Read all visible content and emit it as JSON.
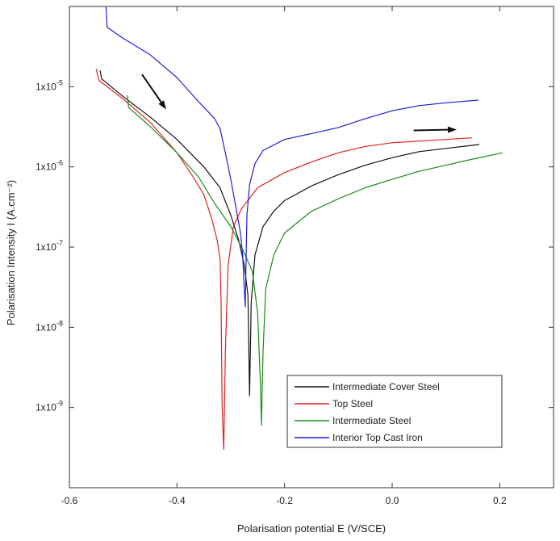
{
  "chart_data": {
    "type": "line",
    "xlabel": "Polarisation potential E (V/SCE)",
    "ylabel": "Polarisation Intensity I (A.cm⁻²)",
    "xlim": [
      -0.6,
      0.3
    ],
    "ylim": [
      1e-10,
      0.0001
    ],
    "yscale": "log",
    "grid": false,
    "legend_position": "bottom-right",
    "x_ticks": [
      {
        "value": -0.6,
        "label": "-0.6"
      },
      {
        "value": -0.4,
        "label": "-0.4"
      },
      {
        "value": -0.2,
        "label": "-0.2"
      },
      {
        "value": 0.0,
        "label": "0.0"
      },
      {
        "value": 0.2,
        "label": "0.2"
      }
    ],
    "y_ticks": [
      {
        "value": 1e-05,
        "base": "1x10",
        "exp": "-5"
      },
      {
        "value": 1e-06,
        "base": "1x10",
        "exp": "-6"
      },
      {
        "value": 1e-07,
        "base": "1x10",
        "exp": "-7"
      },
      {
        "value": 1e-08,
        "base": "1x10",
        "exp": "-8"
      },
      {
        "value": 1e-09,
        "base": "1x10",
        "exp": "-9"
      }
    ],
    "series": [
      {
        "name": "Intermediate Cover Steel",
        "color": "#111111",
        "points": [
          [
            -0.543,
            1.6e-05
          ],
          [
            -0.54,
            1.25e-05
          ],
          [
            -0.5,
            7.5e-06
          ],
          [
            -0.45,
            4.2e-06
          ],
          [
            -0.4,
            2.2e-06
          ],
          [
            -0.35,
            1e-06
          ],
          [
            -0.32,
            5.5e-07
          ],
          [
            -0.3,
            2.5e-07
          ],
          [
            -0.285,
            1.2e-07
          ],
          [
            -0.275,
            6e-08
          ],
          [
            -0.268,
            2.5e-08
          ],
          [
            -0.265,
            1.4e-09
          ],
          [
            -0.262,
            2e-08
          ],
          [
            -0.255,
            8e-08
          ],
          [
            -0.24,
            1.8e-07
          ],
          [
            -0.22,
            2.8e-07
          ],
          [
            -0.2,
            3.8e-07
          ],
          [
            -0.15,
            5.8e-07
          ],
          [
            -0.1,
            8e-07
          ],
          [
            -0.05,
            1.05e-06
          ],
          [
            0.0,
            1.3e-06
          ],
          [
            0.05,
            1.55e-06
          ],
          [
            0.1,
            1.7e-06
          ],
          [
            0.162,
            1.9e-06
          ]
        ]
      },
      {
        "name": "Top Steel",
        "color": "#e02020",
        "points": [
          [
            -0.55,
            1.65e-05
          ],
          [
            -0.545,
            1.2e-05
          ],
          [
            -0.5,
            7e-06
          ],
          [
            -0.45,
            3.6e-06
          ],
          [
            -0.4,
            1.5e-06
          ],
          [
            -0.37,
            7.5e-07
          ],
          [
            -0.35,
            4.5e-07
          ],
          [
            -0.335,
            2.2e-07
          ],
          [
            -0.325,
            1.2e-07
          ],
          [
            -0.32,
            7e-08
          ],
          [
            -0.318,
            2e-08
          ],
          [
            -0.316,
            1e-09
          ],
          [
            -0.313,
            3e-10
          ],
          [
            -0.31,
            5e-09
          ],
          [
            -0.305,
            6e-08
          ],
          [
            -0.295,
            1.8e-07
          ],
          [
            -0.28,
            3e-07
          ],
          [
            -0.25,
            5.5e-07
          ],
          [
            -0.2,
            8.5e-07
          ],
          [
            -0.15,
            1.15e-06
          ],
          [
            -0.1,
            1.5e-06
          ],
          [
            -0.05,
            1.8e-06
          ],
          [
            0.0,
            2e-06
          ],
          [
            0.05,
            2.1e-06
          ],
          [
            0.1,
            2.2e-06
          ],
          [
            0.148,
            2.3e-06
          ]
        ]
      },
      {
        "name": "Intermediate Steel",
        "color": "#1a8a1a",
        "points": [
          [
            -0.492,
            7.8e-06
          ],
          [
            -0.49,
            5.5e-06
          ],
          [
            -0.45,
            3.2e-06
          ],
          [
            -0.4,
            1.5e-06
          ],
          [
            -0.36,
            7.5e-07
          ],
          [
            -0.33,
            3.5e-07
          ],
          [
            -0.3,
            1.8e-07
          ],
          [
            -0.28,
            1e-07
          ],
          [
            -0.26,
            5e-08
          ],
          [
            -0.25,
            1.5e-08
          ],
          [
            -0.245,
            2e-09
          ],
          [
            -0.243,
            6e-10
          ],
          [
            -0.24,
            5e-09
          ],
          [
            -0.235,
            3e-08
          ],
          [
            -0.22,
            8e-08
          ],
          [
            -0.2,
            1.5e-07
          ],
          [
            -0.15,
            2.8e-07
          ],
          [
            -0.1,
            4e-07
          ],
          [
            -0.05,
            5.5e-07
          ],
          [
            0.0,
            7e-07
          ],
          [
            0.05,
            8.8e-07
          ],
          [
            0.1,
            1.05e-06
          ],
          [
            0.15,
            1.25e-06
          ],
          [
            0.205,
            1.5e-06
          ]
        ]
      },
      {
        "name": "Interior Top Cast Iron",
        "color": "#1f1fd6",
        "points": [
          [
            -0.532,
            0.0001
          ],
          [
            -0.53,
            5.5e-05
          ],
          [
            -0.5,
            4e-05
          ],
          [
            -0.45,
            2.5e-05
          ],
          [
            -0.4,
            1.3e-05
          ],
          [
            -0.36,
            6.5e-06
          ],
          [
            -0.33,
            4e-06
          ],
          [
            -0.32,
            3e-06
          ],
          [
            -0.31,
            1.5e-06
          ],
          [
            -0.3,
            7e-07
          ],
          [
            -0.29,
            3e-07
          ],
          [
            -0.282,
            1.5e-07
          ],
          [
            -0.278,
            8e-08
          ],
          [
            -0.275,
            3e-08
          ],
          [
            -0.273,
            1.8e-08
          ],
          [
            -0.272,
            5e-08
          ],
          [
            -0.27,
            2.5e-07
          ],
          [
            -0.265,
            6e-07
          ],
          [
            -0.255,
            1.1e-06
          ],
          [
            -0.24,
            1.6e-06
          ],
          [
            -0.2,
            2.2e-06
          ],
          [
            -0.15,
            2.6e-06
          ],
          [
            -0.1,
            3.1e-06
          ],
          [
            -0.05,
            4e-06
          ],
          [
            0.0,
            5e-06
          ],
          [
            0.05,
            5.8e-06
          ],
          [
            0.1,
            6.3e-06
          ],
          [
            0.16,
            6.8e-06
          ]
        ]
      }
    ],
    "arrows": [
      {
        "from": [
          -0.465,
          1.42e-05
        ],
        "to": [
          -0.42,
          5.2e-06
        ],
        "color": "#111111"
      },
      {
        "from": [
          0.04,
          2.85e-06
        ],
        "to": [
          0.12,
          2.92e-06
        ],
        "color": "#111111"
      }
    ]
  }
}
